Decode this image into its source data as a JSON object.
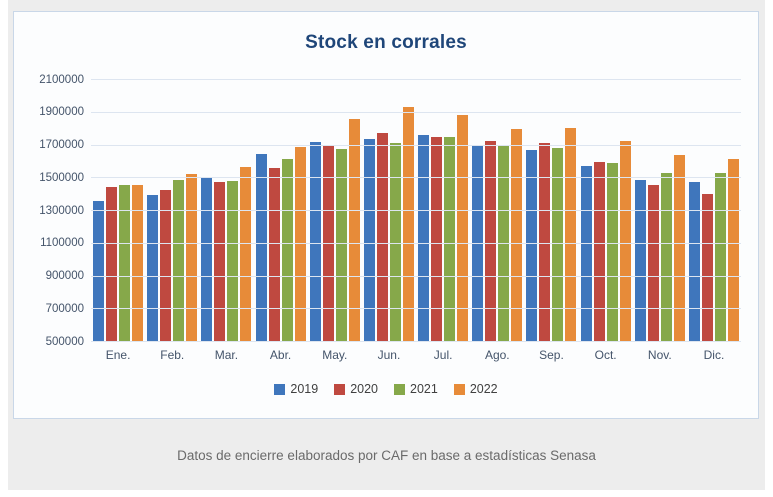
{
  "page": {
    "footer": "Datos de encierre elaborados por CAF en base a estadísticas Senasa"
  },
  "colors": {
    "title_text": "#1f4679",
    "axis_text": "#44546a",
    "gridline": "#dde5f0",
    "page_background": "#ededed",
    "card_border": "#c9d7e8",
    "footer_text": "#6a6a6a"
  },
  "chart_data": {
    "type": "bar",
    "title": "Stock en corrales",
    "categories": [
      "Ene.",
      "Feb.",
      "Mar.",
      "Abr.",
      "May.",
      "Jun.",
      "Jul.",
      "Ago.",
      "Sep.",
      "Oct.",
      "Nov.",
      "Dic."
    ],
    "series": [
      {
        "name": "2019",
        "color": "#3f76bc",
        "values": [
          1360000,
          1400000,
          1510000,
          1650000,
          1720000,
          1740000,
          1765000,
          1695000,
          1675000,
          1575000,
          1490000,
          1475000
        ]
      },
      {
        "name": "2020",
        "color": "#bf4940",
        "values": [
          1445000,
          1430000,
          1480000,
          1565000,
          1705000,
          1775000,
          1750000,
          1730000,
          1715000,
          1600000,
          1460000,
          1405000
        ]
      },
      {
        "name": "2021",
        "color": "#86a84a",
        "values": [
          1460000,
          1490000,
          1485000,
          1615000,
          1680000,
          1715000,
          1750000,
          1695000,
          1685000,
          1595000,
          1535000,
          1530000
        ]
      },
      {
        "name": "2022",
        "color": "#e78b39",
        "values": [
          1460000,
          1525000,
          1570000,
          1690000,
          1860000,
          1935000,
          1885000,
          1800000,
          1810000,
          1725000,
          1645000,
          1620000
        ]
      }
    ],
    "xlabel": "",
    "ylabel": "",
    "ylim": [
      500000,
      2100000
    ],
    "ytick_step": 200000,
    "grid": true,
    "legend_position": "bottom"
  }
}
